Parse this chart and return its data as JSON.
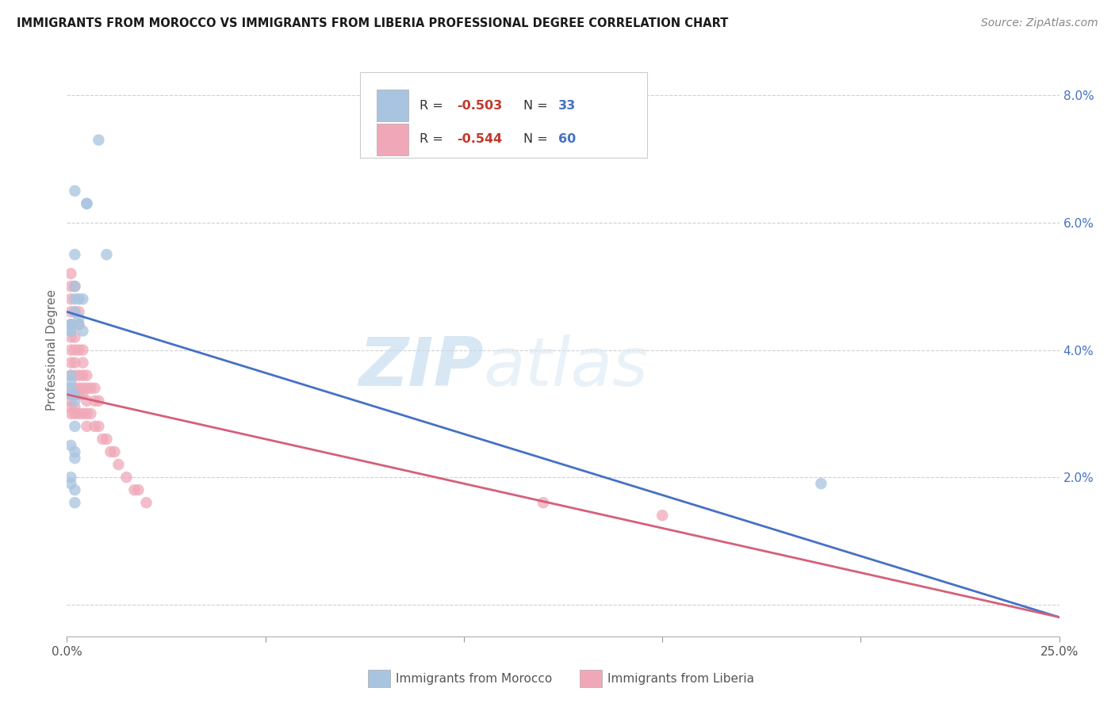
{
  "title": "IMMIGRANTS FROM MOROCCO VS IMMIGRANTS FROM LIBERIA PROFESSIONAL DEGREE CORRELATION CHART",
  "source": "Source: ZipAtlas.com",
  "ylabel": "Professional Degree",
  "xlim": [
    0.0,
    0.25
  ],
  "ylim": [
    -0.005,
    0.085
  ],
  "xticks": [
    0.0,
    0.05,
    0.1,
    0.15,
    0.2,
    0.25
  ],
  "yticks": [
    0.0,
    0.02,
    0.04,
    0.06,
    0.08
  ],
  "morocco_color": "#a8c4e0",
  "liberia_color": "#f0a8b8",
  "morocco_line_color": "#4472c4",
  "liberia_line_color": "#d4607a",
  "morocco_R": -0.503,
  "morocco_N": 33,
  "liberia_R": -0.544,
  "liberia_N": 60,
  "watermark_zip": "ZIP",
  "watermark_atlas": "atlas",
  "background_color": "#ffffff",
  "grid_color": "#d0d0d0",
  "morocco_scatter_x": [
    0.008,
    0.005,
    0.005,
    0.01,
    0.002,
    0.002,
    0.002,
    0.002,
    0.003,
    0.003,
    0.002,
    0.001,
    0.001,
    0.001,
    0.003,
    0.004,
    0.001,
    0.004,
    0.001,
    0.001,
    0.001,
    0.001,
    0.002,
    0.002,
    0.002,
    0.001,
    0.002,
    0.002,
    0.001,
    0.001,
    0.002,
    0.19,
    0.002
  ],
  "morocco_scatter_y": [
    0.073,
    0.063,
    0.063,
    0.055,
    0.065,
    0.055,
    0.05,
    0.048,
    0.048,
    0.045,
    0.046,
    0.044,
    0.044,
    0.043,
    0.044,
    0.048,
    0.043,
    0.043,
    0.036,
    0.035,
    0.034,
    0.033,
    0.033,
    0.032,
    0.028,
    0.025,
    0.024,
    0.023,
    0.02,
    0.019,
    0.018,
    0.019,
    0.016
  ],
  "liberia_scatter_x": [
    0.001,
    0.001,
    0.001,
    0.001,
    0.001,
    0.001,
    0.001,
    0.001,
    0.001,
    0.001,
    0.001,
    0.001,
    0.001,
    0.001,
    0.002,
    0.002,
    0.002,
    0.002,
    0.002,
    0.002,
    0.002,
    0.002,
    0.002,
    0.002,
    0.003,
    0.003,
    0.003,
    0.003,
    0.003,
    0.003,
    0.003,
    0.004,
    0.004,
    0.004,
    0.004,
    0.004,
    0.004,
    0.005,
    0.005,
    0.005,
    0.005,
    0.005,
    0.006,
    0.006,
    0.007,
    0.007,
    0.007,
    0.008,
    0.008,
    0.009,
    0.01,
    0.011,
    0.012,
    0.013,
    0.015,
    0.017,
    0.018,
    0.02,
    0.12,
    0.15
  ],
  "liberia_scatter_y": [
    0.052,
    0.05,
    0.048,
    0.046,
    0.044,
    0.042,
    0.04,
    0.038,
    0.036,
    0.034,
    0.033,
    0.032,
    0.031,
    0.03,
    0.05,
    0.046,
    0.042,
    0.04,
    0.038,
    0.036,
    0.034,
    0.033,
    0.031,
    0.03,
    0.046,
    0.044,
    0.04,
    0.036,
    0.034,
    0.033,
    0.03,
    0.04,
    0.038,
    0.036,
    0.034,
    0.033,
    0.03,
    0.036,
    0.034,
    0.032,
    0.03,
    0.028,
    0.034,
    0.03,
    0.034,
    0.032,
    0.028,
    0.032,
    0.028,
    0.026,
    0.026,
    0.024,
    0.024,
    0.022,
    0.02,
    0.018,
    0.018,
    0.016,
    0.016,
    0.014
  ]
}
